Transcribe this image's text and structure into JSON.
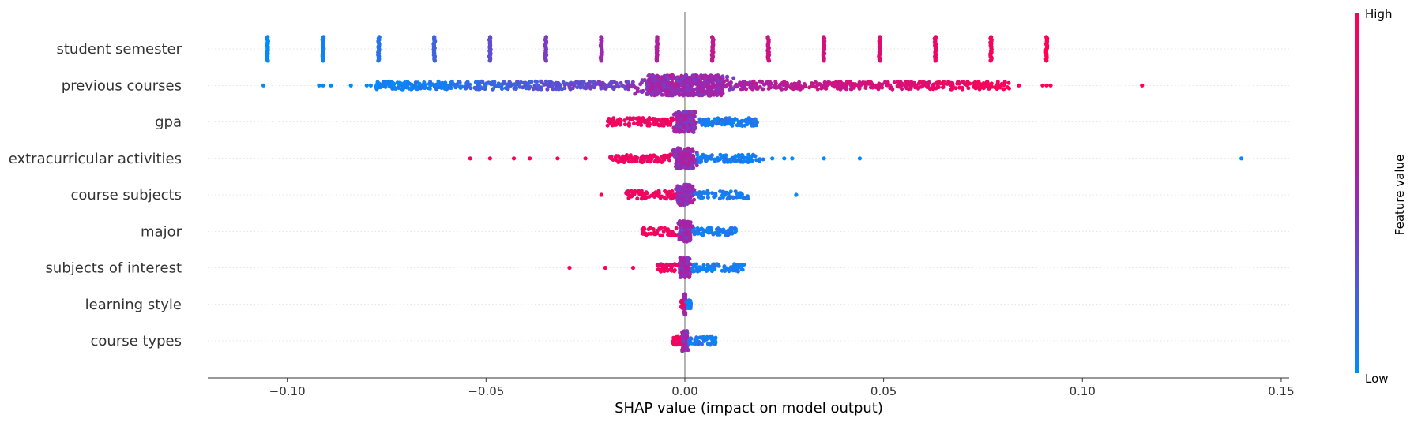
{
  "chart_data": {
    "type": "scatter",
    "title": "",
    "xlabel": "SHAP value (impact on model output)",
    "ylabel": "",
    "xlim": [
      -0.12,
      0.152
    ],
    "xticks": [
      -0.1,
      -0.05,
      0.0,
      0.05,
      0.1,
      0.15
    ],
    "xtick_labels": [
      "−0.10",
      "−0.05",
      "0.00",
      "0.05",
      "0.10",
      "0.15"
    ],
    "grid": false,
    "colorbar": {
      "label": "Feature value",
      "high_label": "High",
      "low_label": "Low",
      "low_color": "#008bfb",
      "high_color": "#ff0052"
    },
    "features": [
      {
        "name": "student semester",
        "clusters": [
          {
            "x": -0.105,
            "v": 0.0
          },
          {
            "x": -0.091,
            "v": 0.05
          },
          {
            "x": -0.077,
            "v": 0.12
          },
          {
            "x": -0.063,
            "v": 0.2
          },
          {
            "x": -0.049,
            "v": 0.3
          },
          {
            "x": -0.035,
            "v": 0.4
          },
          {
            "x": -0.021,
            "v": 0.5
          },
          {
            "x": -0.007,
            "v": 0.6
          },
          {
            "x": 0.007,
            "v": 0.68
          },
          {
            "x": 0.021,
            "v": 0.74
          },
          {
            "x": 0.035,
            "v": 0.78
          },
          {
            "x": 0.049,
            "v": 0.83
          },
          {
            "x": 0.063,
            "v": 0.9
          },
          {
            "x": 0.077,
            "v": 0.95
          },
          {
            "x": 0.091,
            "v": 1.0
          }
        ]
      },
      {
        "name": "previous courses",
        "outliers": [
          {
            "x": -0.106,
            "v": 0.0
          },
          {
            "x": -0.092,
            "v": 0.0
          },
          {
            "x": -0.091,
            "v": 0.0
          },
          {
            "x": -0.089,
            "v": 0.0
          },
          {
            "x": -0.084,
            "v": 0.0
          },
          {
            "x": -0.08,
            "v": 0.02
          },
          {
            "x": -0.079,
            "v": 0.02
          },
          {
            "x": 0.084,
            "v": 0.95
          },
          {
            "x": 0.09,
            "v": 0.98
          },
          {
            "x": 0.091,
            "v": 1.0
          },
          {
            "x": 0.092,
            "v": 1.0
          },
          {
            "x": 0.115,
            "v": 1.0
          }
        ],
        "dense_range": [
          -0.078,
          0.082
        ]
      },
      {
        "name": "gpa",
        "dense_range": [
          -0.0195,
          0.0185
        ],
        "color_direction": "high_left"
      },
      {
        "name": "extracurricular activities",
        "outliers": [
          {
            "x": -0.054,
            "v": 1.0
          },
          {
            "x": -0.049,
            "v": 1.0
          },
          {
            "x": -0.043,
            "v": 1.0
          },
          {
            "x": -0.039,
            "v": 1.0
          },
          {
            "x": -0.032,
            "v": 1.0
          },
          {
            "x": -0.025,
            "v": 1.0
          },
          {
            "x": 0.022,
            "v": 0.0
          },
          {
            "x": 0.025,
            "v": 0.0
          },
          {
            "x": 0.027,
            "v": 0.0
          },
          {
            "x": 0.035,
            "v": 0.0
          },
          {
            "x": 0.044,
            "v": 0.0
          },
          {
            "x": 0.14,
            "v": 0.0
          }
        ],
        "dense_range": [
          -0.019,
          0.02
        ]
      },
      {
        "name": "course subjects",
        "outliers": [
          {
            "x": -0.021,
            "v": 1.0
          },
          {
            "x": 0.028,
            "v": 0.0
          }
        ],
        "dense_range": [
          -0.015,
          0.016
        ]
      },
      {
        "name": "major",
        "dense_range": [
          -0.011,
          0.013
        ]
      },
      {
        "name": "subjects of interest",
        "outliers": [
          {
            "x": -0.029,
            "v": 1.0
          },
          {
            "x": -0.02,
            "v": 1.0
          },
          {
            "x": -0.013,
            "v": 1.0
          }
        ],
        "dense_range": [
          -0.007,
          0.015
        ]
      },
      {
        "name": "learning style",
        "dense_range": [
          -0.001,
          0.0015
        ]
      },
      {
        "name": "course types",
        "dense_range": [
          -0.003,
          0.008
        ]
      }
    ]
  }
}
